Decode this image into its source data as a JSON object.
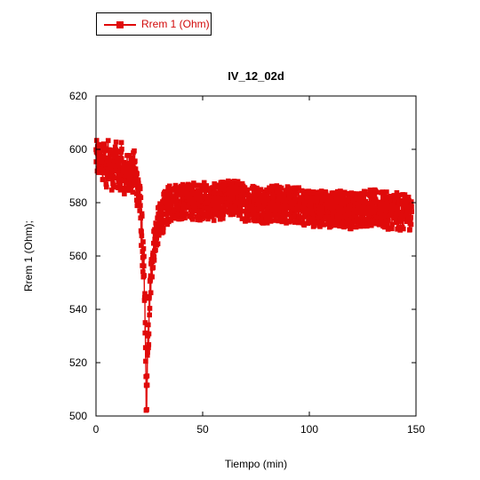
{
  "legend": {
    "label": "Rrem 1 (Ohm)",
    "position": "top-left"
  },
  "chart_data": {
    "type": "scatter",
    "title": "IV_12_02d",
    "xlabel": "Tiempo (min)",
    "ylabel": "Rrem 1 (Ohm);",
    "xlim": [
      0,
      150
    ],
    "ylim": [
      500,
      620
    ],
    "xticks": [
      0,
      50,
      100,
      150
    ],
    "yticks": [
      500,
      520,
      540,
      560,
      580,
      600,
      620
    ],
    "grid": false,
    "series": [
      {
        "name": "Rrem 1 (Ohm)",
        "color": "#e00a0a",
        "style": "line-with-square-markers",
        "x": [
          0,
          1,
          2,
          3,
          4,
          5,
          6,
          7,
          8,
          9,
          10,
          11,
          12,
          13,
          14,
          15,
          16,
          17,
          18,
          19,
          20,
          20.5,
          21,
          21.5,
          22,
          22.5,
          23,
          23.3,
          23.6,
          24,
          24.5,
          25,
          25.5,
          26,
          26.5,
          27,
          27.5,
          28,
          29,
          30,
          31,
          32,
          33,
          34,
          35,
          36,
          38,
          40,
          42,
          44,
          46,
          48,
          50,
          55,
          60,
          65,
          70,
          75,
          80,
          85,
          90,
          95,
          100,
          105,
          110,
          115,
          120,
          125,
          130,
          135,
          140,
          145,
          148
        ],
        "y": [
          598,
          595,
          597,
          593,
          596,
          592,
          598,
          594,
          590,
          596,
          593,
          591,
          595,
          588,
          592,
          589,
          594,
          590,
          592,
          587,
          585,
          580,
          575,
          568,
          560,
          550,
          535,
          518,
          505,
          515,
          528,
          540,
          548,
          555,
          560,
          563,
          566,
          568,
          571,
          573,
          575,
          577,
          578,
          579,
          580,
          580,
          581,
          580,
          581,
          580,
          581,
          580,
          581,
          580,
          581,
          582,
          580,
          580,
          579,
          580,
          579,
          579,
          578,
          578,
          577,
          578,
          577,
          578,
          578,
          577,
          577,
          576,
          577
        ],
        "band": [
          6,
          7,
          7,
          7,
          8,
          8,
          8,
          8,
          8,
          8,
          8,
          8,
          8,
          8,
          8,
          8,
          8,
          8,
          8,
          8,
          8,
          8,
          9,
          9,
          9,
          10,
          10,
          10,
          8,
          8,
          8,
          8,
          8,
          7,
          7,
          7,
          7,
          7,
          7,
          7,
          7,
          7,
          7,
          7,
          7,
          7,
          7,
          7,
          7,
          7,
          7,
          7,
          7,
          7,
          7,
          7,
          7,
          7,
          7,
          7,
          7,
          7,
          7,
          7,
          7,
          7,
          7,
          7,
          7,
          7,
          7,
          7,
          7
        ]
      }
    ]
  }
}
